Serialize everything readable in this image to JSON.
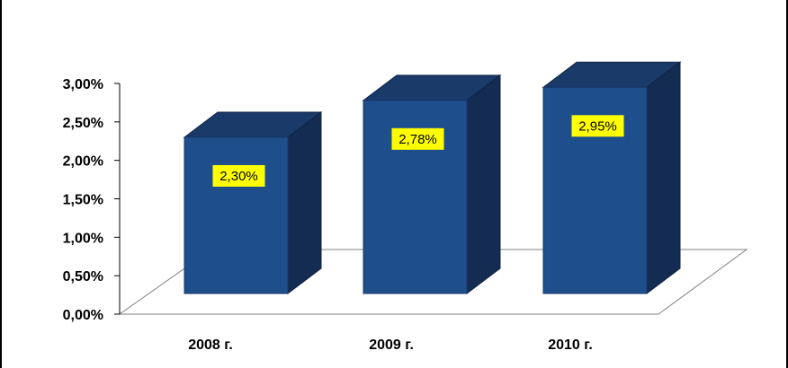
{
  "chart_data": {
    "type": "bar",
    "categories": [
      "2008 г.",
      "2009 г.",
      "2010 г."
    ],
    "values": [
      2.3,
      2.78,
      2.95
    ],
    "data_labels": [
      "2,30%",
      "2,78%",
      "2,95%"
    ],
    "y_ticks": [
      0,
      0.5,
      1.0,
      1.5,
      2.0,
      2.5,
      3.0
    ],
    "y_tick_labels": [
      "0,00%",
      "0,50%",
      "1,00%",
      "1,50%",
      "2,00%",
      "2,50%",
      "3,00%"
    ],
    "ylim": [
      0,
      3.0
    ],
    "grid": false,
    "legend": "none",
    "three_d": true
  },
  "colors": {
    "bar_front": "#1F4E8C",
    "bar_side": "#142B52",
    "bar_top": "#1A3A6A",
    "label_bg": "#FFFF00",
    "floor_line": "#808080",
    "axis": "#000000"
  }
}
